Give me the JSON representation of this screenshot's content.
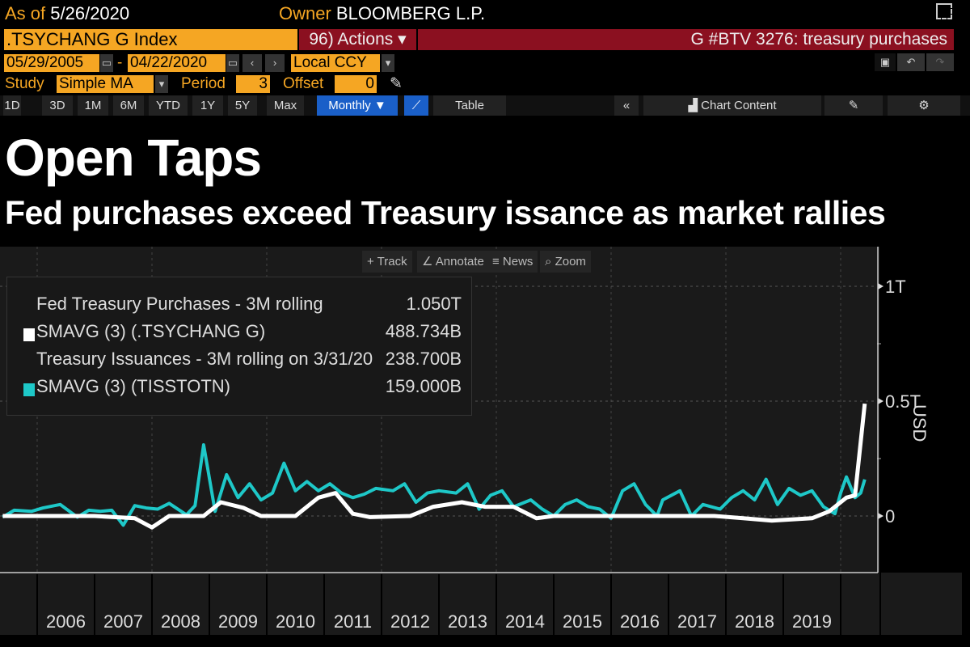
{
  "header": {
    "as_of_label": "As of",
    "as_of_value": "5/26/2020",
    "owner_label": "Owner",
    "owner_value": "BLOOMBERG L.P."
  },
  "security": {
    "ticker": ".TSYCHANG G Index",
    "actions": "96) Actions ▾",
    "chart_ref": "G #BTV 3276: treasury purchases"
  },
  "range": {
    "start": "05/29/2005",
    "sep": "-",
    "end": "04/22/2020",
    "currency": "Local CCY"
  },
  "study": {
    "label": "Study",
    "value": "Simple MA",
    "period_label": "Period",
    "period": "3",
    "offset_label": "Offset",
    "offset": "0"
  },
  "toolbar": {
    "periods": [
      "1D",
      "3D",
      "1M",
      "6M",
      "YTD",
      "1Y",
      "5Y",
      "Max"
    ],
    "frequency": "Monthly ▼",
    "table": "Table",
    "collapse": "«",
    "chart_content": "Chart Content"
  },
  "headline": {
    "title": "Open Taps",
    "subtitle": "Fed purchases exceed Treasury issance as market rallies"
  },
  "chart_tools": {
    "track": "Track",
    "annotate": "Annotate",
    "news": "News",
    "zoom": "Zoom"
  },
  "legend": [
    {
      "name": "Fed Treasury Purchases - 3M rolling",
      "value": "1.050T"
    },
    {
      "name": "SMAVG (3) (.TSYCHANG G)",
      "value": "488.734B",
      "color": "#ffffff"
    },
    {
      "name": "Treasury Issuances - 3M rolling on 3/31/20",
      "value": "238.700B"
    },
    {
      "name": "SMAVG (3) (TISSTOTN)",
      "value": "159.000B",
      "color": "#1ec8c8"
    }
  ],
  "chart_data": {
    "type": "line",
    "title": "Open Taps",
    "subtitle": "Fed purchases exceed Treasury issance as market rallies",
    "ylabel": "USD",
    "xlabel": "",
    "y_unit": "billions USD",
    "ylim": [
      -240,
      1200
    ],
    "y_ticks": [
      {
        "value": 0,
        "label": "0"
      },
      {
        "value": 500,
        "label": "0.5T"
      },
      {
        "value": 1000,
        "label": "1T"
      }
    ],
    "x_ticks": [
      "2006",
      "2007",
      "2008",
      "2009",
      "2010",
      "2011",
      "2012",
      "2013",
      "2014",
      "2015",
      "2016",
      "2017",
      "2018",
      "2019"
    ],
    "xlim": [
      2005.4,
      2020.45
    ],
    "grid": true,
    "series": [
      {
        "name": "SMAVG (3) (TISSTOTN)",
        "color": "#1ec8c8",
        "points": [
          [
            2005.4,
            -5
          ],
          [
            2005.6,
            25
          ],
          [
            2005.9,
            20
          ],
          [
            2006.1,
            35
          ],
          [
            2006.4,
            50
          ],
          [
            2006.7,
            -5
          ],
          [
            2006.9,
            25
          ],
          [
            2007.1,
            20
          ],
          [
            2007.3,
            25
          ],
          [
            2007.5,
            -40
          ],
          [
            2007.7,
            45
          ],
          [
            2007.9,
            35
          ],
          [
            2008.1,
            30
          ],
          [
            2008.3,
            55
          ],
          [
            2008.6,
            5
          ],
          [
            2008.75,
            45
          ],
          [
            2008.9,
            310
          ],
          [
            2009.1,
            20
          ],
          [
            2009.3,
            180
          ],
          [
            2009.5,
            80
          ],
          [
            2009.7,
            140
          ],
          [
            2009.9,
            70
          ],
          [
            2010.1,
            100
          ],
          [
            2010.3,
            230
          ],
          [
            2010.5,
            110
          ],
          [
            2010.7,
            150
          ],
          [
            2010.9,
            110
          ],
          [
            2011.1,
            140
          ],
          [
            2011.3,
            100
          ],
          [
            2011.5,
            80
          ],
          [
            2011.7,
            95
          ],
          [
            2011.9,
            120
          ],
          [
            2012.2,
            110
          ],
          [
            2012.4,
            140
          ],
          [
            2012.6,
            60
          ],
          [
            2012.8,
            100
          ],
          [
            2013.0,
            110
          ],
          [
            2013.3,
            100
          ],
          [
            2013.5,
            140
          ],
          [
            2013.7,
            30
          ],
          [
            2013.9,
            90
          ],
          [
            2014.1,
            110
          ],
          [
            2014.3,
            40
          ],
          [
            2014.6,
            70
          ],
          [
            2014.8,
            30
          ],
          [
            2015.0,
            0
          ],
          [
            2015.2,
            50
          ],
          [
            2015.4,
            70
          ],
          [
            2015.6,
            40
          ],
          [
            2015.8,
            30
          ],
          [
            2016.0,
            -10
          ],
          [
            2016.2,
            110
          ],
          [
            2016.4,
            140
          ],
          [
            2016.6,
            50
          ],
          [
            2016.8,
            0
          ],
          [
            2016.9,
            70
          ],
          [
            2017.2,
            110
          ],
          [
            2017.4,
            0
          ],
          [
            2017.6,
            50
          ],
          [
            2017.9,
            30
          ],
          [
            2018.1,
            80
          ],
          [
            2018.3,
            110
          ],
          [
            2018.5,
            70
          ],
          [
            2018.7,
            160
          ],
          [
            2018.9,
            50
          ],
          [
            2019.1,
            120
          ],
          [
            2019.3,
            90
          ],
          [
            2019.5,
            110
          ],
          [
            2019.7,
            40
          ],
          [
            2019.9,
            10
          ],
          [
            2020.0,
            100
          ],
          [
            2020.1,
            170
          ],
          [
            2020.25,
            80
          ],
          [
            2020.35,
            100
          ],
          [
            2020.42,
            159
          ]
        ]
      },
      {
        "name": "SMAVG (3) (.TSYCHANG G)",
        "color": "#ffffff",
        "points": [
          [
            2005.4,
            0
          ],
          [
            2007.0,
            0
          ],
          [
            2007.7,
            -10
          ],
          [
            2008.0,
            -50
          ],
          [
            2008.3,
            0
          ],
          [
            2008.9,
            0
          ],
          [
            2009.2,
            60
          ],
          [
            2009.6,
            35
          ],
          [
            2009.9,
            0
          ],
          [
            2010.5,
            0
          ],
          [
            2010.9,
            80
          ],
          [
            2011.2,
            100
          ],
          [
            2011.5,
            10
          ],
          [
            2011.8,
            -5
          ],
          [
            2012.5,
            0
          ],
          [
            2012.9,
            40
          ],
          [
            2013.4,
            60
          ],
          [
            2013.8,
            40
          ],
          [
            2014.3,
            40
          ],
          [
            2014.7,
            -10
          ],
          [
            2015.0,
            0
          ],
          [
            2017.2,
            0
          ],
          [
            2017.8,
            0
          ],
          [
            2018.3,
            -10
          ],
          [
            2018.8,
            -20
          ],
          [
            2019.5,
            -10
          ],
          [
            2019.8,
            20
          ],
          [
            2020.1,
            80
          ],
          [
            2020.25,
            90
          ],
          [
            2020.42,
            489
          ]
        ]
      }
    ]
  }
}
